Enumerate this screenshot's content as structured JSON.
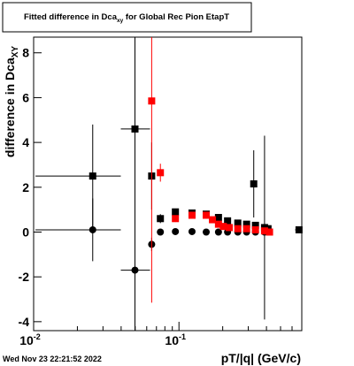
{
  "chart_data": {
    "type": "scatter",
    "title": "Fitted difference in Dca",
    "title_subscript": "xy",
    "title_suffix": " for Global Rec Pion EtapT",
    "ylabel": "difference in Dca",
    "ylabel_subscript": "XY",
    "xlabel": "pT/|q| (GeV/c)",
    "footer": "Wed Nov 23 22:21:52 2022",
    "log_x": true,
    "xlim": [
      0.01,
      0.7
    ],
    "ylim": [
      -4.4,
      8.7
    ],
    "xticks": [
      {
        "value": 0.01,
        "label": "10",
        "exponent": "-2"
      },
      {
        "value": 0.1,
        "label": "10",
        "exponent": "-1"
      }
    ],
    "xminor_ticks": [
      0.02,
      0.03,
      0.04,
      0.05,
      0.06,
      0.07,
      0.08,
      0.09,
      0.2,
      0.3,
      0.4,
      0.5,
      0.6
    ],
    "yticks": [
      -4,
      -2,
      0,
      2,
      4,
      6,
      8
    ],
    "series": [
      {
        "color": "#000000",
        "marker": "square",
        "x": [
          0.0255,
          0.0498,
          0.0649,
          0.0745,
          0.0945,
          0.123,
          0.154,
          0.187,
          0.216,
          0.254,
          0.292,
          0.327,
          0.336,
          0.388,
          0.41,
          0.67
        ],
        "values": [
          2.5,
          4.6,
          2.5,
          0.6,
          0.9,
          0.85,
          0.8,
          0.65,
          0.5,
          0.4,
          0.35,
          2.15,
          0.3,
          0.2,
          0.15,
          0.1
        ],
        "yerr": [
          2.3,
          9,
          1.5,
          0.2,
          0.1,
          0.1,
          0.1,
          0.1,
          0.1,
          0.1,
          0.1,
          1.5,
          0.1,
          4.1,
          0.1,
          0.1
        ],
        "x_lo": [
          0.0103,
          0.0398,
          null,
          null,
          null,
          null,
          null,
          null,
          null,
          null,
          null,
          null,
          null,
          null,
          null,
          0.63
        ],
        "x_hi": [
          0.0398,
          0.0632,
          null,
          null,
          null,
          null,
          null,
          null,
          null,
          null,
          null,
          null,
          null,
          null,
          null,
          0.7
        ]
      },
      {
        "color": "#000000",
        "marker": "circle",
        "x": [
          0.0255,
          0.0498,
          0.0649,
          0.0745,
          0.0945,
          0.123,
          0.154,
          0.187,
          0.216,
          0.254,
          0.292,
          0.336,
          0.388
        ],
        "values": [
          0.1,
          -1.7,
          -0.55,
          0.0,
          0.02,
          0.02,
          0.0,
          0.0,
          0.0,
          0.0,
          0.0,
          0.0,
          0.0
        ],
        "yerr": [
          1.4,
          0.3,
          0.3,
          0.1,
          0.05,
          0.05,
          0.05,
          0.05,
          0.05,
          0.05,
          0.05,
          0.05,
          0.05
        ],
        "x_lo": [
          0.0103,
          0.0398,
          null,
          null,
          null,
          null,
          null,
          null,
          null,
          null,
          null,
          null,
          null
        ],
        "x_hi": [
          0.0398,
          0.0632,
          null,
          null,
          null,
          null,
          null,
          null,
          null,
          null,
          null,
          null,
          null
        ]
      },
      {
        "color": "#ff0000",
        "marker": "square",
        "x": [
          0.0649,
          0.0745,
          0.0945,
          0.123,
          0.154,
          0.17,
          0.187,
          0.202,
          0.222,
          0.254,
          0.292,
          0.336,
          0.388,
          0.42
        ],
        "values": [
          5.85,
          2.65,
          0.6,
          0.75,
          0.75,
          0.55,
          0.35,
          0.25,
          0.2,
          0.15,
          0.15,
          0.1,
          0.05,
          0.0
        ],
        "yerr": [
          9,
          0.4,
          0.15,
          0.1,
          0.1,
          0.1,
          0.1,
          0.1,
          0.1,
          0.1,
          0.1,
          0.1,
          0.1,
          0.1
        ]
      }
    ]
  }
}
